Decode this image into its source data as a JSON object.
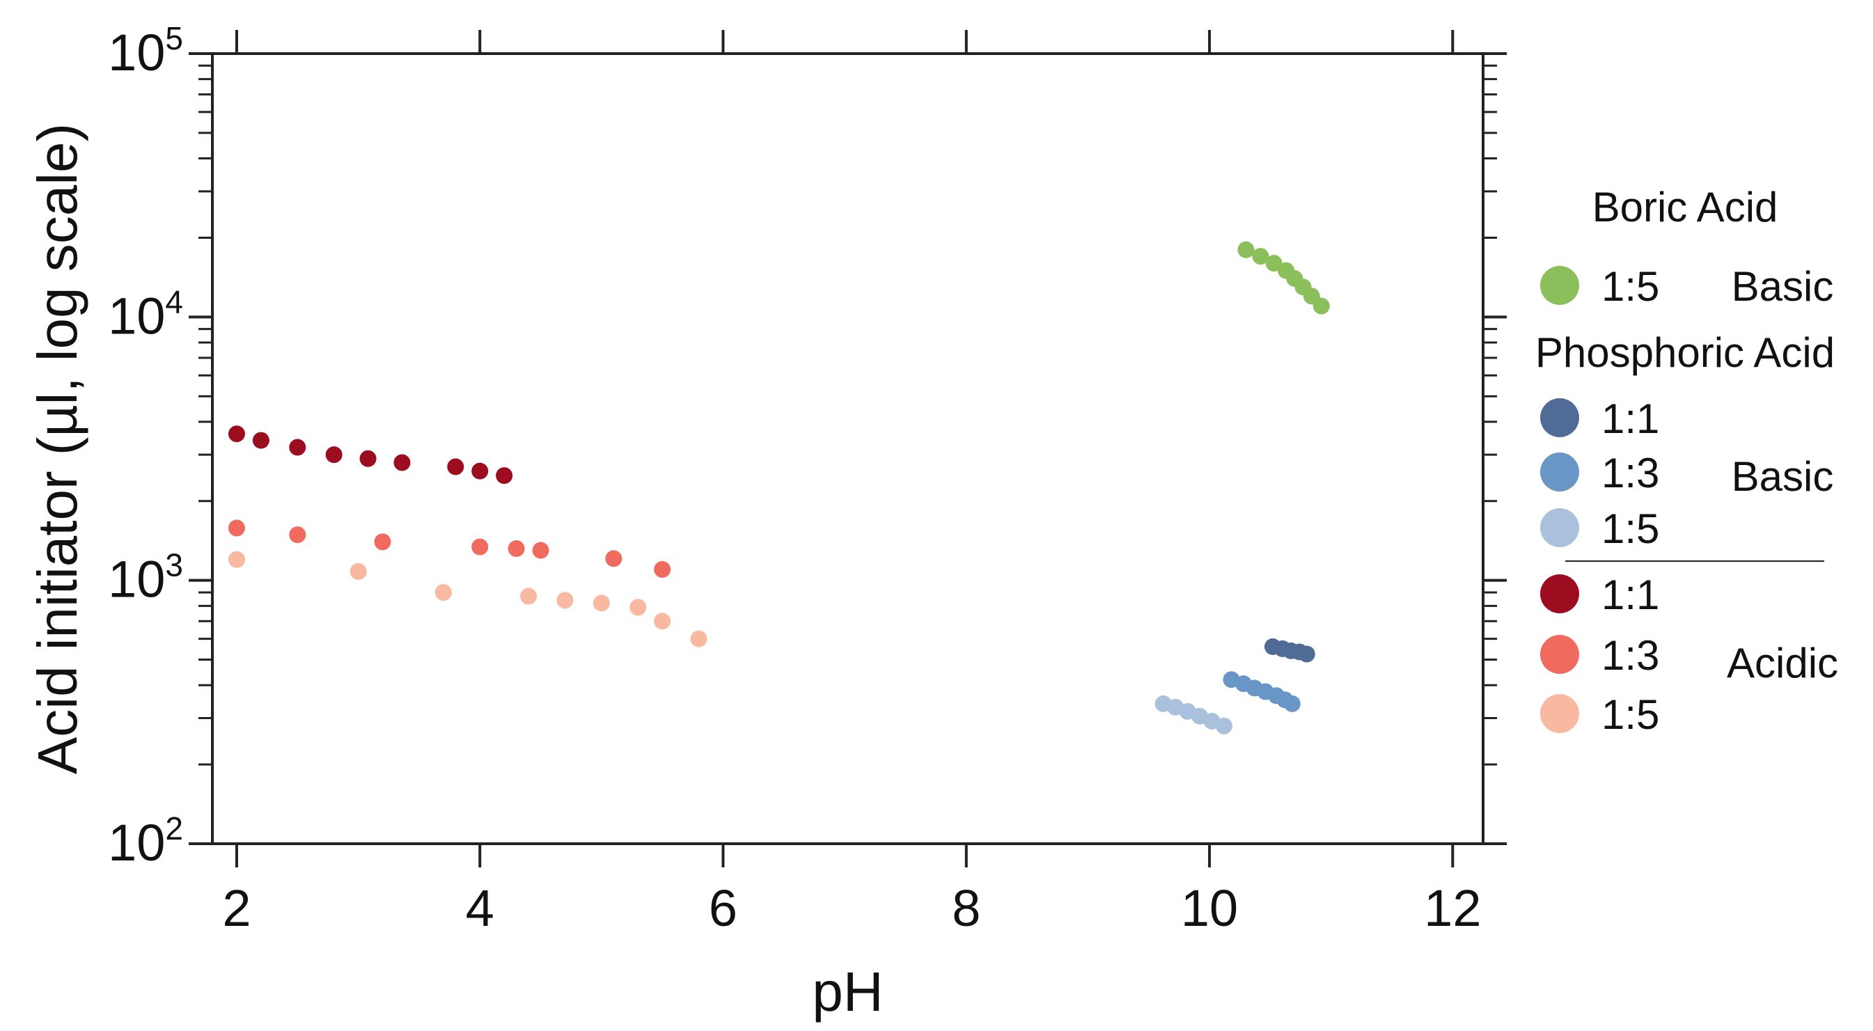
{
  "chart_data": {
    "type": "scatter",
    "xlabel": "pH",
    "ylabel": "Acid initiator (µl, log scale)",
    "xlim": [
      1.8,
      12.25
    ],
    "ylim": [
      100,
      100000
    ],
    "yscale": "log",
    "x_ticks": [
      "2",
      "4",
      "6",
      "8",
      "10",
      "12"
    ],
    "y_ticks": [
      {
        "base": "10",
        "exp": "2",
        "value": 100
      },
      {
        "base": "10",
        "exp": "3",
        "value": 1000
      },
      {
        "base": "10",
        "exp": "4",
        "value": 10000
      },
      {
        "base": "10",
        "exp": "5",
        "value": 100000
      }
    ],
    "grid": false,
    "legend_position": "right",
    "legend": {
      "groups": [
        {
          "title": "Boric Acid",
          "category": "Basic",
          "entries": [
            {
              "label": "1:5",
              "color": "#8bbf5b"
            }
          ]
        },
        {
          "title": "Phosphoric Acid",
          "category": "Basic",
          "entries": [
            {
              "label": "1:1",
              "color": "#4f6b96"
            },
            {
              "label": "1:3",
              "color": "#6897c7"
            },
            {
              "label": "1:5",
              "color": "#a9c1dc"
            }
          ]
        },
        {
          "title": "",
          "category": "Acidic",
          "entries": [
            {
              "label": "1:1",
              "color": "#9b0d1f"
            },
            {
              "label": "1:3",
              "color": "#f06a5e"
            },
            {
              "label": "1:5",
              "color": "#f8b9a0"
            }
          ]
        }
      ]
    },
    "series": [
      {
        "color": "#8bbf5b",
        "x": [
          10.3,
          10.42,
          10.53,
          10.63,
          10.7,
          10.77,
          10.84,
          10.92
        ],
        "y": [
          18000,
          17000,
          16000,
          15000,
          14000,
          13000,
          12000,
          11000
        ]
      },
      {
        "color": "#4f6b96",
        "x": [
          10.52,
          10.6,
          10.67,
          10.74,
          10.8
        ],
        "y": [
          560,
          550,
          540,
          535,
          525
        ]
      },
      {
        "color": "#6897c7",
        "x": [
          10.18,
          10.28,
          10.37,
          10.46,
          10.55,
          10.62,
          10.68
        ],
        "y": [
          420,
          405,
          390,
          378,
          365,
          352,
          340
        ]
      },
      {
        "color": "#a9c1dc",
        "x": [
          9.62,
          9.72,
          9.82,
          9.92,
          10.02,
          10.12
        ],
        "y": [
          340,
          330,
          318,
          305,
          292,
          280
        ]
      },
      {
        "color": "#9b0d1f",
        "x": [
          2.0,
          2.2,
          2.5,
          2.8,
          3.08,
          3.36,
          3.8,
          4.0,
          4.2
        ],
        "y": [
          3600,
          3400,
          3200,
          3000,
          2900,
          2800,
          2700,
          2600,
          2500
        ]
      },
      {
        "color": "#f06a5e",
        "x": [
          2.0,
          2.5,
          3.2,
          4.0,
          4.3,
          4.5,
          5.1,
          5.5
        ],
        "y": [
          1580,
          1490,
          1400,
          1340,
          1320,
          1300,
          1210,
          1100
        ]
      },
      {
        "color": "#f8b9a0",
        "x": [
          2.0,
          3.0,
          3.7,
          4.4,
          4.7,
          5.0,
          5.3,
          5.5,
          5.8
        ],
        "y": [
          1200,
          1080,
          900,
          870,
          840,
          820,
          790,
          700,
          600
        ]
      }
    ]
  }
}
